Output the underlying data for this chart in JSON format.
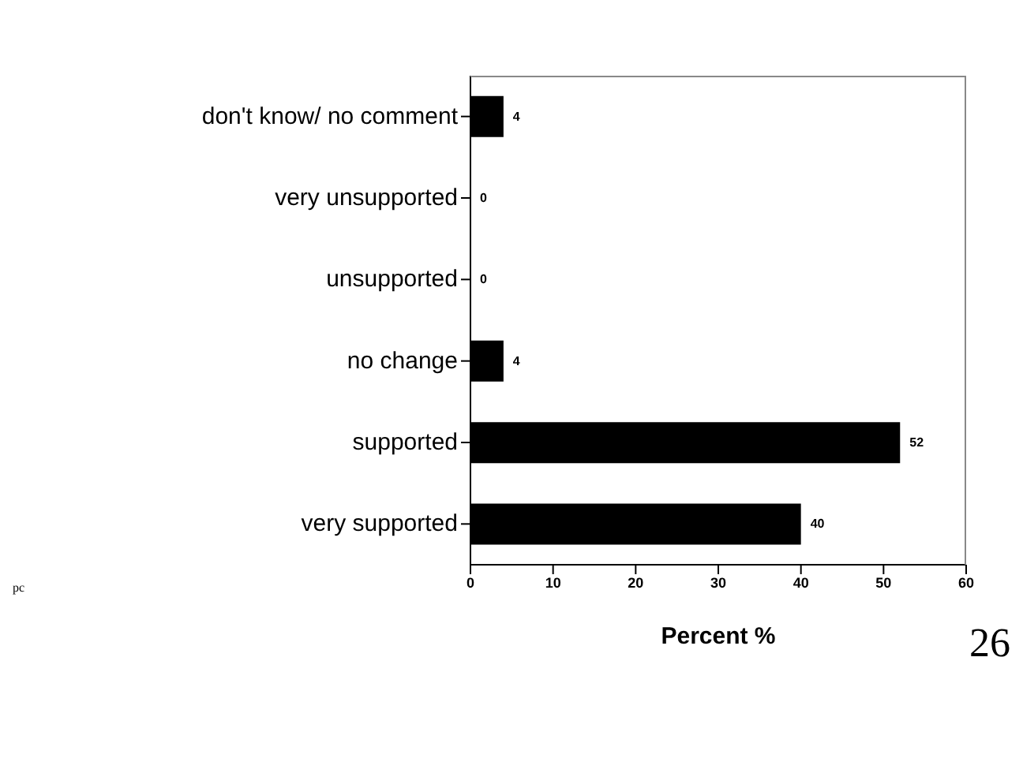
{
  "chart_data": {
    "type": "bar",
    "orientation": "horizontal",
    "xlabel": "Percent %",
    "categories": [
      "don't know/ no comment",
      "very unsupported",
      "unsupported",
      "no change",
      "supported",
      "very supported"
    ],
    "values": [
      4,
      0,
      0,
      4,
      52,
      40
    ],
    "color": "#000000",
    "xlim": [
      0,
      60
    ],
    "xticks": [
      0,
      10,
      20,
      30,
      40,
      50,
      60
    ],
    "data_labels": true,
    "grid": false,
    "annotations": [
      "pc",
      "26"
    ]
  }
}
